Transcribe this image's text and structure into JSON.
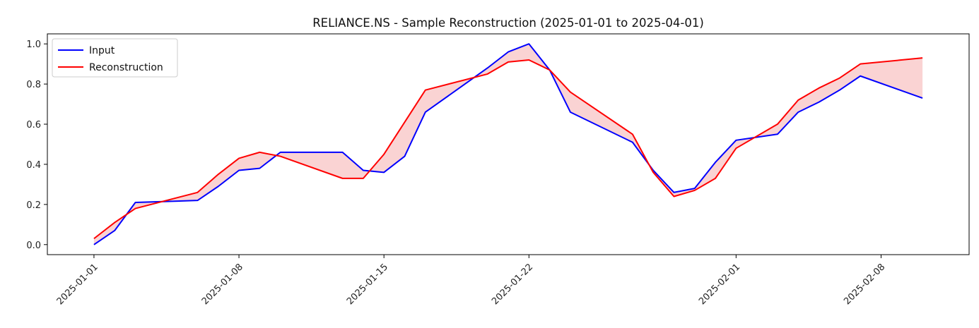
{
  "chart_data": {
    "type": "line",
    "title": "RELIANCE.NS - Sample Reconstruction (2025-01-01 to 2025-04-01)",
    "xlabel": "",
    "ylabel": "",
    "x_tick_labels": [
      "2025-01-01",
      "2025-01-08",
      "2025-01-15",
      "2025-01-22",
      "2025-02-01",
      "2025-02-08"
    ],
    "y_tick_labels": [
      "0.0",
      "0.2",
      "0.4",
      "0.6",
      "0.8",
      "1.0"
    ],
    "y_ticks": [
      0.0,
      0.2,
      0.4,
      0.6,
      0.8,
      1.0
    ],
    "ylim": [
      -0.05,
      1.05
    ],
    "xlim": [
      "2024-12-29T18:00",
      "2025-02-12T06:00"
    ],
    "x": [
      "2025-01-01",
      "2025-01-02",
      "2025-01-03",
      "2025-01-06",
      "2025-01-07",
      "2025-01-08",
      "2025-01-09",
      "2025-01-10",
      "2025-01-13",
      "2025-01-14",
      "2025-01-15",
      "2025-01-16",
      "2025-01-17",
      "2025-01-20",
      "2025-01-21",
      "2025-01-22",
      "2025-01-23",
      "2025-01-24",
      "2025-01-27",
      "2025-01-28",
      "2025-01-29",
      "2025-01-30",
      "2025-01-31",
      "2025-02-01",
      "2025-02-03",
      "2025-02-04",
      "2025-02-05",
      "2025-02-06",
      "2025-02-07",
      "2025-02-10"
    ],
    "series": [
      {
        "name": "Input",
        "color": "#0000ff",
        "values": [
          0.0,
          0.07,
          0.21,
          0.22,
          0.29,
          0.37,
          0.38,
          0.46,
          0.46,
          0.37,
          0.36,
          0.44,
          0.66,
          0.88,
          0.96,
          1.0,
          0.87,
          0.66,
          0.51,
          0.37,
          0.26,
          0.28,
          0.41,
          0.52,
          0.55,
          0.66,
          0.71,
          0.77,
          0.84,
          0.73
        ]
      },
      {
        "name": "Reconstruction",
        "color": "#ff0000",
        "values": [
          0.03,
          0.11,
          0.18,
          0.26,
          0.35,
          0.43,
          0.46,
          0.44,
          0.33,
          0.33,
          0.45,
          0.61,
          0.77,
          0.85,
          0.91,
          0.92,
          0.87,
          0.76,
          0.55,
          0.36,
          0.24,
          0.27,
          0.33,
          0.48,
          0.6,
          0.72,
          0.78,
          0.83,
          0.9,
          0.93
        ]
      }
    ],
    "fill_between": {
      "color": "#f08080",
      "opacity": 0.35
    },
    "legend": {
      "placement": "top-left",
      "entries": [
        "Input",
        "Reconstruction"
      ]
    },
    "grid": false
  }
}
